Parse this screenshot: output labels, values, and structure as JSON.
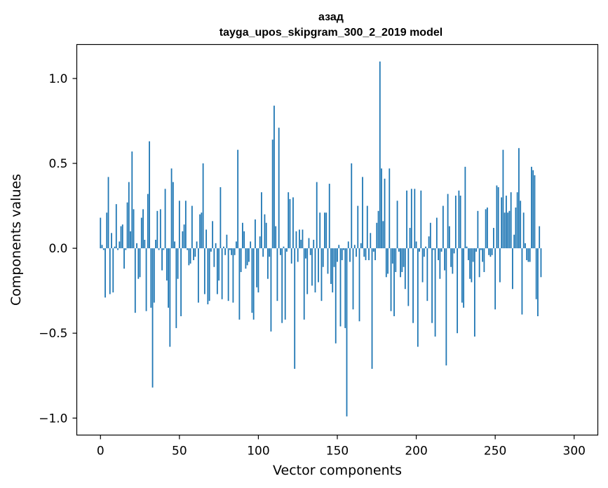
{
  "chart_data": {
    "type": "bar",
    "title": "азад",
    "subtitle": "tayga_upos_skipgram_300_2_2019 model",
    "xlabel": "Vector components",
    "ylabel": "Components values",
    "xlim": [
      -15,
      315
    ],
    "ylim": [
      -1.1,
      1.2
    ],
    "xticks": [
      0,
      50,
      100,
      150,
      200,
      250,
      300
    ],
    "xtick_labels": [
      "0",
      "50",
      "100",
      "150",
      "200",
      "250",
      "300"
    ],
    "yticks": [
      -1.0,
      -0.5,
      0.0,
      0.5,
      1.0
    ],
    "ytick_labels": [
      "−1.0",
      "−0.5",
      "0.0",
      "0.5",
      "1.0"
    ],
    "bar_color": "#1f77b4",
    "grid": false,
    "series": [
      {
        "values": [
          0.18,
          0.02,
          -0.01,
          -0.29,
          0.21,
          0.42,
          -0.27,
          0.09,
          -0.26,
          0.01,
          0.26,
          -0.01,
          0.04,
          0.13,
          0.14,
          -0.12,
          -0.01,
          0.27,
          0.39,
          0.1,
          0.57,
          0.23,
          -0.38,
          0.03,
          -0.18,
          -0.17,
          0.18,
          0.23,
          0.05,
          -0.37,
          0.32,
          0.63,
          -0.35,
          -0.82,
          -0.32,
          0.05,
          0.22,
          -0.01,
          0.23,
          -0.13,
          -0.01,
          0.35,
          -0.19,
          -0.35,
          -0.58,
          0.47,
          0.39,
          0.04,
          -0.47,
          -0.18,
          0.28,
          -0.4,
          0.1,
          0.14,
          0.28,
          -0.01,
          -0.1,
          -0.09,
          0.25,
          -0.07,
          -0.05,
          0.04,
          -0.32,
          0.2,
          0.21,
          0.5,
          -0.27,
          0.11,
          -0.33,
          -0.31,
          -0.02,
          0.16,
          -0.11,
          0.03,
          -0.27,
          -0.19,
          0.36,
          -0.3,
          0.01,
          -0.04,
          0.08,
          -0.31,
          -0.01,
          -0.04,
          -0.32,
          -0.04,
          0.04,
          0.58,
          -0.42,
          -0.14,
          0.15,
          0.1,
          -0.12,
          -0.1,
          -0.08,
          0.04,
          -0.38,
          -0.42,
          0.17,
          -0.23,
          -0.26,
          0.07,
          0.33,
          -0.05,
          0.2,
          0.15,
          -0.18,
          -0.05,
          -0.49,
          0.64,
          0.84,
          0.13,
          -0.31,
          0.71,
          -0.04,
          -0.44,
          0.01,
          -0.42,
          -0.02,
          0.33,
          0.29,
          -0.09,
          0.3,
          -0.71,
          0.1,
          -0.08,
          0.11,
          0.05,
          0.11,
          -0.42,
          -0.06,
          -0.27,
          0.06,
          -0.04,
          -0.22,
          0.05,
          -0.26,
          0.39,
          -0.2,
          0.21,
          -0.31,
          -0.11,
          0.21,
          0.21,
          -0.15,
          0.38,
          -0.21,
          -0.26,
          -0.11,
          -0.56,
          -0.08,
          0.02,
          -0.46,
          -0.07,
          -0.01,
          -0.47,
          -0.99,
          0.04,
          -0.08,
          0.5,
          -0.36,
          0.02,
          -0.05,
          0.25,
          -0.43,
          0.03,
          0.42,
          -0.05,
          -0.07,
          0.25,
          -0.07,
          0.09,
          -0.71,
          -0.02,
          -0.07,
          0.15,
          0.22,
          1.1,
          0.47,
          0.16,
          0.41,
          -0.17,
          -0.15,
          0.47,
          -0.37,
          -0.09,
          -0.4,
          -0.14,
          0.28,
          -0.02,
          -0.17,
          -0.14,
          -0.11,
          -0.24,
          0.34,
          -0.34,
          0.12,
          0.35,
          -0.44,
          0.35,
          0.04,
          -0.58,
          -0.02,
          0.34,
          -0.2,
          -0.05,
          0.01,
          -0.31,
          0.07,
          0.15,
          -0.44,
          -0.01,
          -0.52,
          0.18,
          -0.07,
          -0.18,
          -0.02,
          0.25,
          -0.13,
          -0.69,
          0.32,
          0.13,
          -0.11,
          -0.15,
          -0.03,
          0.31,
          -0.5,
          0.34,
          0.31,
          -0.32,
          -0.35,
          0.48,
          0.01,
          -0.07,
          -0.18,
          -0.2,
          -0.08,
          -0.52,
          -0.02,
          0.22,
          -0.17,
          -0.01,
          -0.08,
          -0.14,
          0.23,
          0.24,
          -0.04,
          -0.05,
          -0.04,
          0.12,
          -0.36,
          0.37,
          0.36,
          -0.2,
          0.3,
          0.58,
          0.21,
          0.31,
          0.21,
          0.22,
          0.33,
          -0.24,
          0.08,
          0.24,
          0.33,
          0.59,
          0.28,
          -0.39,
          0.21,
          0.03,
          -0.07,
          -0.08,
          -0.08,
          0.48,
          0.46,
          0.43,
          -0.3,
          -0.4,
          0.13,
          -0.17
        ]
      }
    ]
  }
}
